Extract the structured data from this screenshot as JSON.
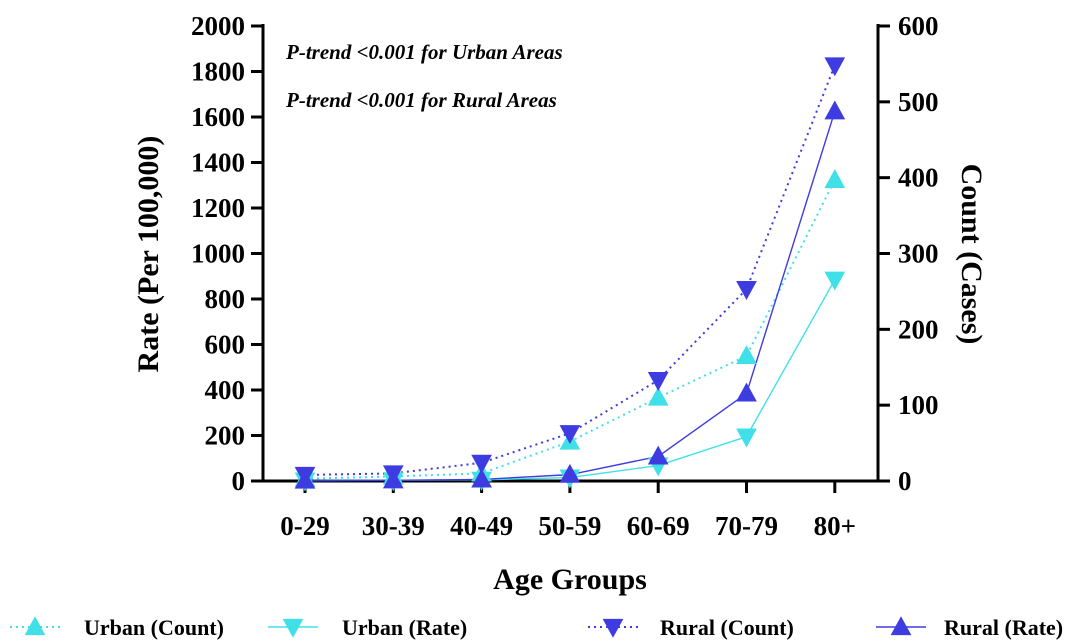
{
  "chart_data": {
    "type": "line",
    "xlabel": "Age Groups",
    "ylabel_left": "Rate (Per 100,000)",
    "ylabel_right": "Count (Cases)",
    "categories": [
      "0-29",
      "30-39",
      "40-49",
      "50-59",
      "60-69",
      "70-79",
      "80+"
    ],
    "ylim_left": [
      0,
      2000
    ],
    "yticks_left": [
      "0",
      "200",
      "400",
      "600",
      "800",
      "1000",
      "1200",
      "1400",
      "1600",
      "1800",
      "2000"
    ],
    "ylim_right": [
      0,
      600
    ],
    "yticks_right": [
      "0",
      "100",
      "200",
      "300",
      "400",
      "500",
      "600"
    ],
    "annotations": [
      "P-trend <0.001 for Urban Areas",
      "P-trend <0.001 for Rural Areas"
    ],
    "grid": false,
    "legend_position": "bottom",
    "series": [
      {
        "name": "Urban (Count)",
        "axis": "right",
        "color": "#40E0E8",
        "line_style": "dotted",
        "marker": "triangle-up",
        "values": [
          3,
          6,
          10,
          52,
          110,
          165,
          397
        ]
      },
      {
        "name": "Urban  (Rate)",
        "axis": "left",
        "color": "#40E0E8",
        "line_style": "solid",
        "marker": "triangle-down",
        "values": [
          2,
          3,
          5,
          15,
          68,
          195,
          885
        ]
      },
      {
        "name": "Rural (Count)",
        "axis": "right",
        "color": "#3E3CE0",
        "line_style": "dotted",
        "marker": "triangle-down",
        "values": [
          8,
          10,
          24,
          63,
          133,
          253,
          548
        ]
      },
      {
        "name": "Rural (Rate)",
        "axis": "left",
        "color": "#3E3CE0",
        "line_style": "solid",
        "marker": "triangle-up",
        "values": [
          2,
          3,
          7,
          28,
          108,
          385,
          1625
        ]
      }
    ]
  }
}
